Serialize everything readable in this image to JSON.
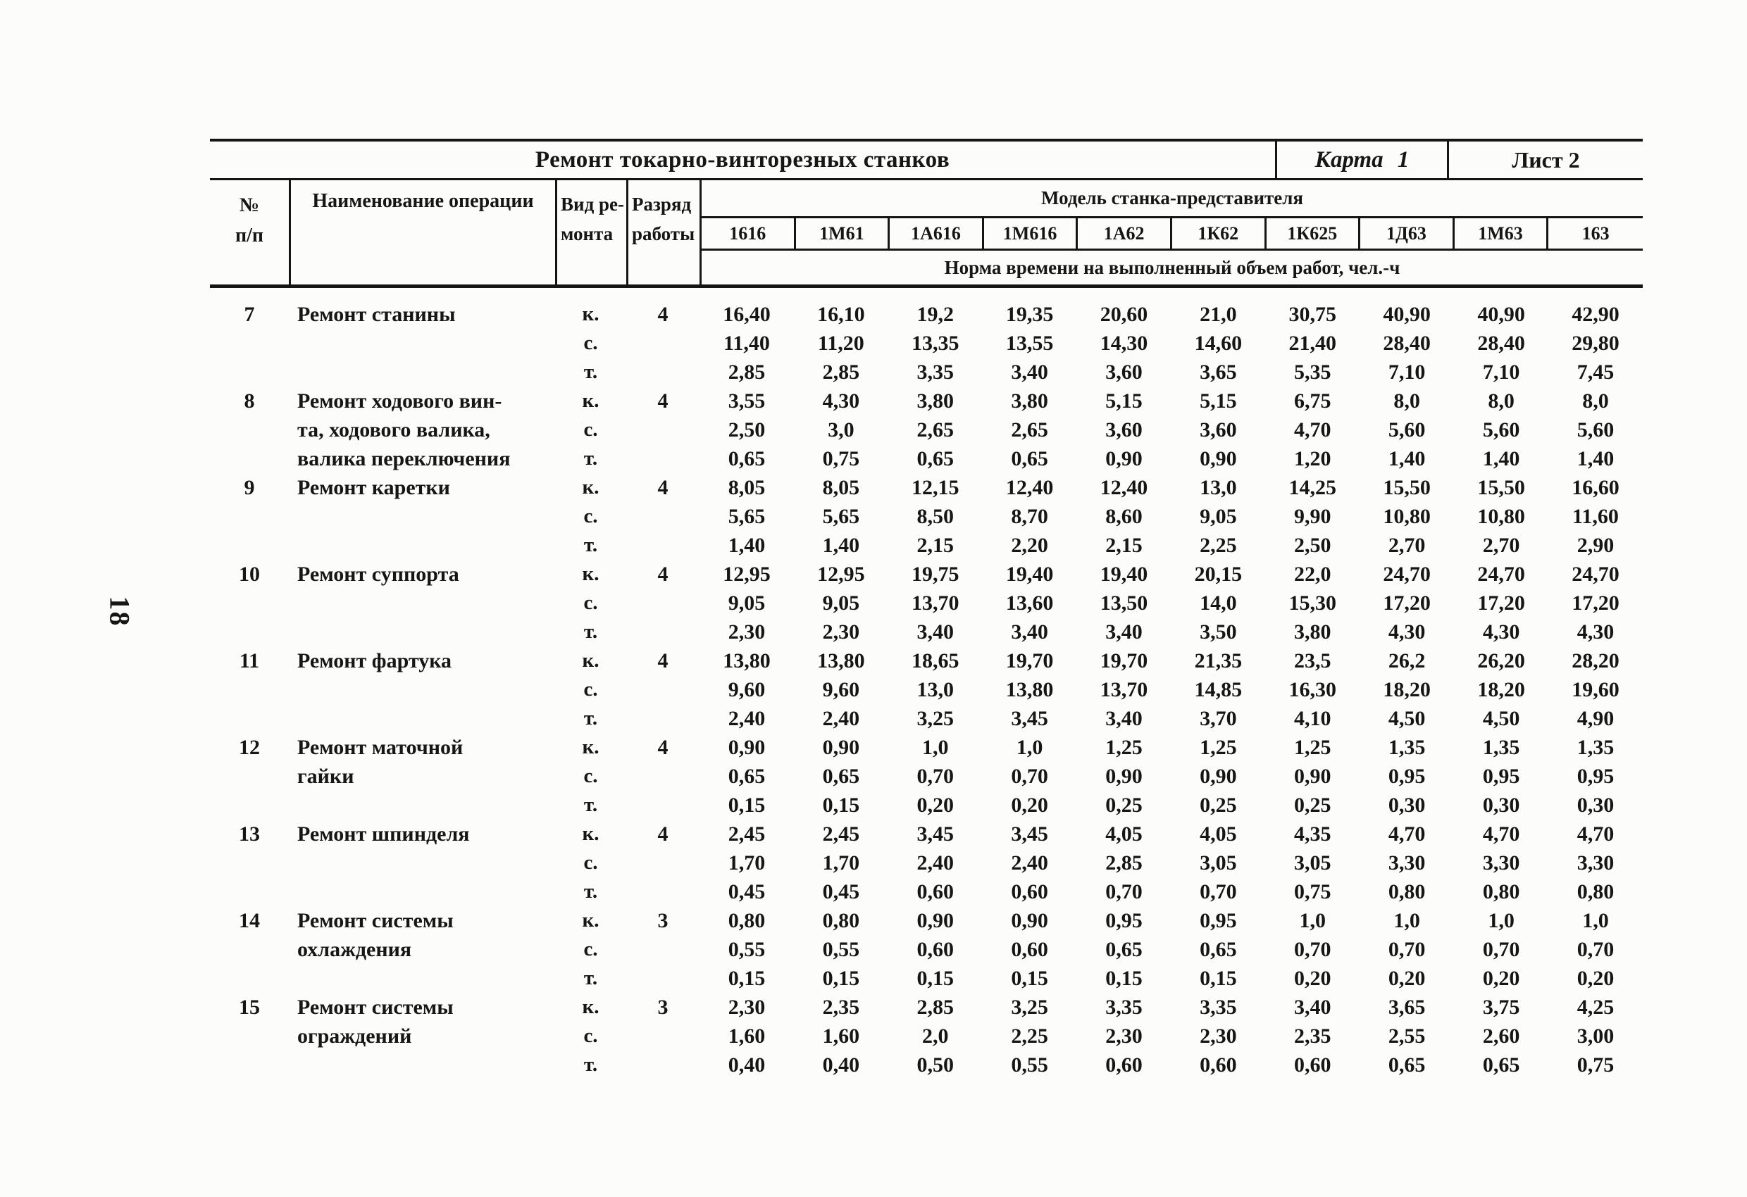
{
  "page": {
    "page_number": "18"
  },
  "title_bar": {
    "title": "Ремонт токарно-винторезных станков",
    "karta_label": "Карта 1",
    "list_label": "Лист 2"
  },
  "header": {
    "num_line1": "№",
    "num_line2": "п/п",
    "name": "Наименование операции",
    "vid_line1": "Вид ре-",
    "vid_line2": "монта",
    "razryad_line1": "Разряд",
    "razryad_line2": "работы",
    "models_title": "Модель станка-представителя",
    "models": [
      "1616",
      "1М61",
      "1А616",
      "1М616",
      "1А62",
      "1К62",
      "1К625",
      "1Д63",
      "1М63",
      "163"
    ],
    "norma_title": "Норма времени на выполненный объем работ, чел.-ч"
  },
  "operations": [
    {
      "num": "7",
      "name_lines": [
        "Ремонт станины"
      ],
      "razryad": "4",
      "rows": [
        {
          "vid": "к.",
          "values": [
            "16,40",
            "16,10",
            "19,2",
            "19,35",
            "20,60",
            "21,0",
            "30,75",
            "40,90",
            "40,90",
            "42,90"
          ]
        },
        {
          "vid": "с.",
          "values": [
            "11,40",
            "11,20",
            "13,35",
            "13,55",
            "14,30",
            "14,60",
            "21,40",
            "28,40",
            "28,40",
            "29,80"
          ]
        },
        {
          "vid": "т.",
          "values": [
            "2,85",
            "2,85",
            "3,35",
            "3,40",
            "3,60",
            "3,65",
            "5,35",
            "7,10",
            "7,10",
            "7,45"
          ]
        }
      ]
    },
    {
      "num": "8",
      "name_lines": [
        "Ремонт ходового вин-",
        "та, ходового валика,",
        "валика переключения"
      ],
      "razryad": "4",
      "rows": [
        {
          "vid": "к.",
          "values": [
            "3,55",
            "4,30",
            "3,80",
            "3,80",
            "5,15",
            "5,15",
            "6,75",
            "8,0",
            "8,0",
            "8,0"
          ]
        },
        {
          "vid": "с.",
          "values": [
            "2,50",
            "3,0",
            "2,65",
            "2,65",
            "3,60",
            "3,60",
            "4,70",
            "5,60",
            "5,60",
            "5,60"
          ]
        },
        {
          "vid": "т.",
          "values": [
            "0,65",
            "0,75",
            "0,65",
            "0,65",
            "0,90",
            "0,90",
            "1,20",
            "1,40",
            "1,40",
            "1,40"
          ]
        }
      ]
    },
    {
      "num": "9",
      "name_lines": [
        "Ремонт каретки"
      ],
      "razryad": "4",
      "rows": [
        {
          "vid": "к.",
          "values": [
            "8,05",
            "8,05",
            "12,15",
            "12,40",
            "12,40",
            "13,0",
            "14,25",
            "15,50",
            "15,50",
            "16,60"
          ]
        },
        {
          "vid": "с.",
          "values": [
            "5,65",
            "5,65",
            "8,50",
            "8,70",
            "8,60",
            "9,05",
            "9,90",
            "10,80",
            "10,80",
            "11,60"
          ]
        },
        {
          "vid": "т.",
          "values": [
            "1,40",
            "1,40",
            "2,15",
            "2,20",
            "2,15",
            "2,25",
            "2,50",
            "2,70",
            "2,70",
            "2,90"
          ]
        }
      ]
    },
    {
      "num": "10",
      "name_lines": [
        "Ремонт суппорта"
      ],
      "razryad": "4",
      "rows": [
        {
          "vid": "к.",
          "values": [
            "12,95",
            "12,95",
            "19,75",
            "19,40",
            "19,40",
            "20,15",
            "22,0",
            "24,70",
            "24,70",
            "24,70"
          ]
        },
        {
          "vid": "с.",
          "values": [
            "9,05",
            "9,05",
            "13,70",
            "13,60",
            "13,50",
            "14,0",
            "15,30",
            "17,20",
            "17,20",
            "17,20"
          ]
        },
        {
          "vid": "т.",
          "values": [
            "2,30",
            "2,30",
            "3,40",
            "3,40",
            "3,40",
            "3,50",
            "3,80",
            "4,30",
            "4,30",
            "4,30"
          ]
        }
      ]
    },
    {
      "num": "11",
      "name_lines": [
        "Ремонт фартука"
      ],
      "razryad": "4",
      "rows": [
        {
          "vid": "к.",
          "values": [
            "13,80",
            "13,80",
            "18,65",
            "19,70",
            "19,70",
            "21,35",
            "23,5",
            "26,2",
            "26,20",
            "28,20"
          ]
        },
        {
          "vid": "с.",
          "values": [
            "9,60",
            "9,60",
            "13,0",
            "13,80",
            "13,70",
            "14,85",
            "16,30",
            "18,20",
            "18,20",
            "19,60"
          ]
        },
        {
          "vid": "т.",
          "values": [
            "2,40",
            "2,40",
            "3,25",
            "3,45",
            "3,40",
            "3,70",
            "4,10",
            "4,50",
            "4,50",
            "4,90"
          ]
        }
      ]
    },
    {
      "num": "12",
      "name_lines": [
        "Ремонт маточной",
        "гайки"
      ],
      "razryad": "4",
      "rows": [
        {
          "vid": "к.",
          "values": [
            "0,90",
            "0,90",
            "1,0",
            "1,0",
            "1,25",
            "1,25",
            "1,25",
            "1,35",
            "1,35",
            "1,35"
          ]
        },
        {
          "vid": "с.",
          "values": [
            "0,65",
            "0,65",
            "0,70",
            "0,70",
            "0,90",
            "0,90",
            "0,90",
            "0,95",
            "0,95",
            "0,95"
          ]
        },
        {
          "vid": "т.",
          "values": [
            "0,15",
            "0,15",
            "0,20",
            "0,20",
            "0,25",
            "0,25",
            "0,25",
            "0,30",
            "0,30",
            "0,30"
          ]
        }
      ]
    },
    {
      "num": "13",
      "name_lines": [
        "Ремонт шпинделя"
      ],
      "razryad": "4",
      "rows": [
        {
          "vid": "к.",
          "values": [
            "2,45",
            "2,45",
            "3,45",
            "3,45",
            "4,05",
            "4,05",
            "4,35",
            "4,70",
            "4,70",
            "4,70"
          ]
        },
        {
          "vid": "с.",
          "values": [
            "1,70",
            "1,70",
            "2,40",
            "2,40",
            "2,85",
            "3,05",
            "3,05",
            "3,30",
            "3,30",
            "3,30"
          ]
        },
        {
          "vid": "т.",
          "values": [
            "0,45",
            "0,45",
            "0,60",
            "0,60",
            "0,70",
            "0,70",
            "0,75",
            "0,80",
            "0,80",
            "0,80"
          ]
        }
      ]
    },
    {
      "num": "14",
      "name_lines": [
        "Ремонт системы",
        "охлаждения"
      ],
      "razryad": "3",
      "rows": [
        {
          "vid": "к.",
          "values": [
            "0,80",
            "0,80",
            "0,90",
            "0,90",
            "0,95",
            "0,95",
            "1,0",
            "1,0",
            "1,0",
            "1,0"
          ]
        },
        {
          "vid": "с.",
          "values": [
            "0,55",
            "0,55",
            "0,60",
            "0,60",
            "0,65",
            "0,65",
            "0,70",
            "0,70",
            "0,70",
            "0,70"
          ]
        },
        {
          "vid": "т.",
          "values": [
            "0,15",
            "0,15",
            "0,15",
            "0,15",
            "0,15",
            "0,15",
            "0,20",
            "0,20",
            "0,20",
            "0,20"
          ]
        }
      ]
    },
    {
      "num": "15",
      "name_lines": [
        "Ремонт системы",
        "ограждений"
      ],
      "razryad": "3",
      "rows": [
        {
          "vid": "к.",
          "values": [
            "2,30",
            "2,35",
            "2,85",
            "3,25",
            "3,35",
            "3,35",
            "3,40",
            "3,65",
            "3,75",
            "4,25"
          ]
        },
        {
          "vid": "с.",
          "values": [
            "1,60",
            "1,60",
            "2,0",
            "2,25",
            "2,30",
            "2,30",
            "2,35",
            "2,55",
            "2,60",
            "3,00"
          ]
        },
        {
          "vid": "т.",
          "values": [
            "0,40",
            "0,40",
            "0,50",
            "0,55",
            "0,60",
            "0,60",
            "0,60",
            "0,65",
            "0,65",
            "0,75"
          ]
        }
      ]
    }
  ]
}
